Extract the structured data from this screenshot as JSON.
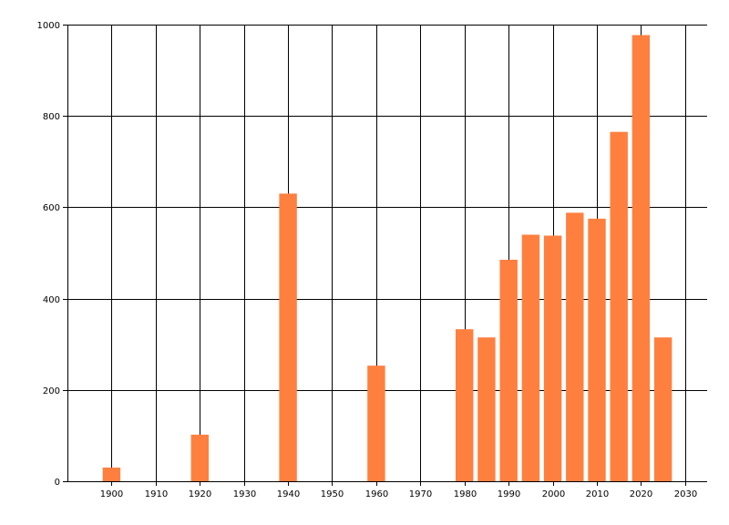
{
  "chart_data": {
    "type": "bar",
    "title": "",
    "xlabel": "",
    "ylabel": "",
    "x": [
      1900,
      1920,
      1940,
      1960,
      1980,
      1985,
      1990,
      1995,
      2000,
      2005,
      2010,
      2015,
      2020,
      2025
    ],
    "values": [
      30,
      102,
      630,
      253,
      333,
      315,
      485,
      540,
      538,
      588,
      575,
      765,
      977,
      315
    ],
    "xlim": [
      1890,
      2035
    ],
    "ylim": [
      0,
      1000
    ],
    "xticks": [
      1900,
      1910,
      1920,
      1930,
      1940,
      1950,
      1960,
      1970,
      1980,
      1990,
      2000,
      2010,
      2020,
      2030
    ],
    "yticks": [
      0,
      200,
      400,
      600,
      800,
      1000
    ],
    "bar_width_years": 4,
    "grid": true,
    "legend": "none",
    "colors": {
      "bar": "#ff7f3f",
      "grid": "#000000",
      "background": "#ffffff"
    }
  }
}
